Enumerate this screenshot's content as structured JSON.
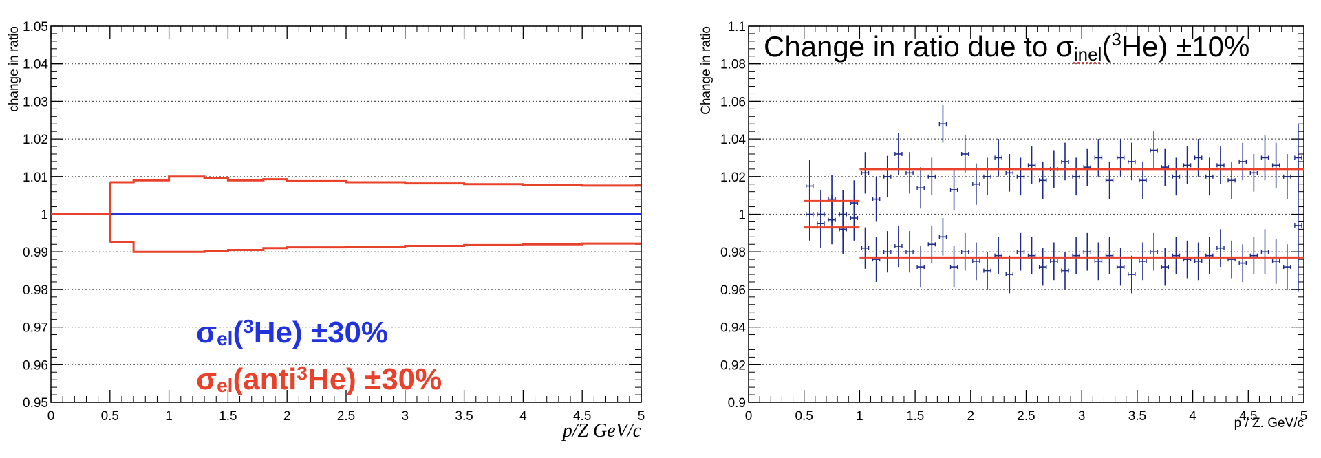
{
  "chart_data": [
    {
      "type": "line",
      "xlabel": "p/Z GeV/c",
      "ylabel": "change in ratio",
      "xlim": [
        0,
        5
      ],
      "ylim": [
        0.95,
        1.05
      ],
      "x_ticks": [
        "0",
        "0.5",
        "1",
        "1.5",
        "2",
        "2.5",
        "3",
        "3.5",
        "4",
        "4.5",
        "5"
      ],
      "y_ticks": [
        "0.95",
        "0.96",
        "0.97",
        "0.98",
        "0.99",
        "1",
        "1.01",
        "1.02",
        "1.03",
        "1.04",
        "1.05"
      ],
      "grid": "horizontal dotted",
      "legend_position": "bottom-left",
      "series": [
        {
          "name": "σel(3He) ±30%",
          "color": "#2233dd",
          "style": "step",
          "x": [
            0.5,
            5.0
          ],
          "values": [
            1.0,
            1.0
          ]
        },
        {
          "name": "σel(anti3He) ±30%",
          "color": "#e8412c",
          "style": "step",
          "x": [
            0.0,
            0.5
          ],
          "values": [
            1.0,
            1.0
          ]
        },
        {
          "color": "#e8412c",
          "style": "step",
          "x": [
            0.5,
            0.7,
            1.0,
            1.3,
            1.5,
            1.8,
            2.0,
            2.5,
            3.0,
            3.5,
            4.0,
            4.5,
            5.0
          ],
          "values": [
            1.0085,
            1.009,
            1.01,
            1.0095,
            1.009,
            1.0093,
            1.0088,
            1.0085,
            1.0082,
            1.008,
            1.0078,
            1.0076,
            1.0074
          ]
        },
        {
          "color": "#e8412c",
          "style": "step",
          "x": [
            0.5,
            0.7,
            1.0,
            1.3,
            1.5,
            1.8,
            2.0,
            2.5,
            3.0,
            3.5,
            4.0,
            4.5,
            5.0
          ],
          "values": [
            0.9925,
            0.99,
            0.99,
            0.9902,
            0.9905,
            0.991,
            0.9912,
            0.9914,
            0.9916,
            0.9918,
            0.992,
            0.9922,
            0.9925
          ]
        }
      ],
      "legend": {
        "line1": {
          "sigma": "σ",
          "sub": "el",
          "open": "(",
          "sup": "3",
          "rest": "He) ±30%",
          "color": "#2233dd"
        },
        "line2": {
          "sigma": "σ",
          "sub": "el",
          "open": "(anti",
          "sup": "3",
          "rest": "He) ±30%",
          "color": "#e8412c"
        }
      }
    },
    {
      "type": "scatter",
      "title": {
        "prefix": "Change in ratio due to ",
        "sigma": "σ",
        "sub": "inel",
        "open": "(",
        "sup": "3",
        "rest": "He) ±10%"
      },
      "xlabel": "p / Z. GeV/c",
      "ylabel": "Change in ratio",
      "xlim": [
        0,
        5
      ],
      "ylim": [
        0.9,
        1.1
      ],
      "x_ticks": [
        "0",
        "0.5",
        "1",
        "1.5",
        "2",
        "2.5",
        "3",
        "3.5",
        "4",
        "4.5",
        "5"
      ],
      "y_ticks": [
        "0.9",
        "0.92",
        "0.94",
        "0.96",
        "0.98",
        "1",
        "1.02",
        "1.04",
        "1.06",
        "1.08",
        "1.1"
      ],
      "grid": "horizontal dotted",
      "marker_color": "#1f2a8a",
      "fit_color": "#e8412c",
      "bin_width": 0.1,
      "fits": [
        {
          "x": [
            0.5,
            1.0
          ],
          "y": 1.007
        },
        {
          "x": [
            0.5,
            1.0
          ],
          "y": 0.993
        },
        {
          "x": [
            1.0,
            5.0
          ],
          "y": 1.024
        },
        {
          "x": [
            1.0,
            5.0
          ],
          "y": 0.977
        }
      ],
      "series": [
        {
          "points": [
            [
              0.55,
              1.015,
              0.014
            ],
            [
              0.65,
              1.0,
              0.013
            ],
            [
              0.75,
              1.008,
              0.013
            ],
            [
              0.85,
              1.0,
              0.013
            ],
            [
              0.95,
              1.006,
              0.012
            ],
            [
              1.05,
              1.022,
              0.011
            ],
            [
              1.15,
              1.008,
              0.012
            ],
            [
              1.25,
              1.02,
              0.011
            ],
            [
              1.35,
              1.032,
              0.011
            ],
            [
              1.45,
              1.022,
              0.011
            ],
            [
              1.55,
              1.014,
              0.011
            ],
            [
              1.65,
              1.02,
              0.01
            ],
            [
              1.75,
              1.048,
              0.01
            ],
            [
              1.85,
              1.013,
              0.011
            ],
            [
              1.95,
              1.032,
              0.01
            ],
            [
              2.05,
              1.016,
              0.011
            ],
            [
              2.15,
              1.02,
              0.01
            ],
            [
              2.25,
              1.03,
              0.01
            ],
            [
              2.35,
              1.022,
              0.01
            ],
            [
              2.45,
              1.02,
              0.01
            ],
            [
              2.55,
              1.026,
              0.01
            ],
            [
              2.65,
              1.018,
              0.01
            ],
            [
              2.75,
              1.024,
              0.01
            ],
            [
              2.85,
              1.028,
              0.01
            ],
            [
              2.95,
              1.02,
              0.01
            ],
            [
              3.05,
              1.025,
              0.01
            ],
            [
              3.15,
              1.03,
              0.01
            ],
            [
              3.25,
              1.018,
              0.01
            ],
            [
              3.35,
              1.03,
              0.01
            ],
            [
              3.45,
              1.028,
              0.01
            ],
            [
              3.55,
              1.018,
              0.01
            ],
            [
              3.65,
              1.034,
              0.01
            ],
            [
              3.75,
              1.025,
              0.01
            ],
            [
              3.85,
              1.02,
              0.01
            ],
            [
              3.95,
              1.026,
              0.01
            ],
            [
              4.05,
              1.03,
              0.01
            ],
            [
              4.15,
              1.02,
              0.01
            ],
            [
              4.25,
              1.026,
              0.01
            ],
            [
              4.35,
              1.018,
              0.01
            ],
            [
              4.45,
              1.028,
              0.01
            ],
            [
              4.55,
              1.022,
              0.01
            ],
            [
              4.65,
              1.03,
              0.012
            ],
            [
              4.75,
              1.026,
              0.012
            ],
            [
              4.85,
              1.02,
              0.012
            ],
            [
              4.95,
              1.03,
              0.018
            ]
          ]
        },
        {
          "points": [
            [
              0.55,
              1.0,
              0.014
            ],
            [
              0.65,
              0.995,
              0.013
            ],
            [
              0.75,
              0.997,
              0.013
            ],
            [
              0.85,
              0.992,
              0.013
            ],
            [
              0.95,
              0.998,
              0.012
            ],
            [
              1.05,
              0.982,
              0.011
            ],
            [
              1.15,
              0.976,
              0.012
            ],
            [
              1.25,
              0.98,
              0.011
            ],
            [
              1.35,
              0.983,
              0.011
            ],
            [
              1.45,
              0.98,
              0.011
            ],
            [
              1.55,
              0.972,
              0.011
            ],
            [
              1.65,
              0.984,
              0.01
            ],
            [
              1.75,
              0.988,
              0.01
            ],
            [
              1.85,
              0.972,
              0.011
            ],
            [
              1.95,
              0.98,
              0.01
            ],
            [
              2.05,
              0.975,
              0.01
            ],
            [
              2.15,
              0.97,
              0.01
            ],
            [
              2.25,
              0.978,
              0.01
            ],
            [
              2.35,
              0.968,
              0.01
            ],
            [
              2.45,
              0.98,
              0.01
            ],
            [
              2.55,
              0.978,
              0.01
            ],
            [
              2.65,
              0.972,
              0.01
            ],
            [
              2.75,
              0.975,
              0.01
            ],
            [
              2.85,
              0.97,
              0.01
            ],
            [
              2.95,
              0.978,
              0.01
            ],
            [
              3.05,
              0.98,
              0.01
            ],
            [
              3.15,
              0.975,
              0.01
            ],
            [
              3.25,
              0.978,
              0.01
            ],
            [
              3.35,
              0.972,
              0.01
            ],
            [
              3.45,
              0.968,
              0.01
            ],
            [
              3.55,
              0.975,
              0.01
            ],
            [
              3.65,
              0.98,
              0.01
            ],
            [
              3.75,
              0.972,
              0.01
            ],
            [
              3.85,
              0.978,
              0.01
            ],
            [
              3.95,
              0.976,
              0.01
            ],
            [
              4.05,
              0.975,
              0.01
            ],
            [
              4.15,
              0.978,
              0.01
            ],
            [
              4.25,
              0.982,
              0.01
            ],
            [
              4.35,
              0.976,
              0.01
            ],
            [
              4.45,
              0.974,
              0.01
            ],
            [
              4.55,
              0.978,
              0.01
            ],
            [
              4.65,
              0.98,
              0.012
            ],
            [
              4.75,
              0.975,
              0.012
            ],
            [
              4.85,
              0.972,
              0.012
            ],
            [
              4.95,
              0.994,
              0.035
            ]
          ]
        }
      ]
    }
  ]
}
